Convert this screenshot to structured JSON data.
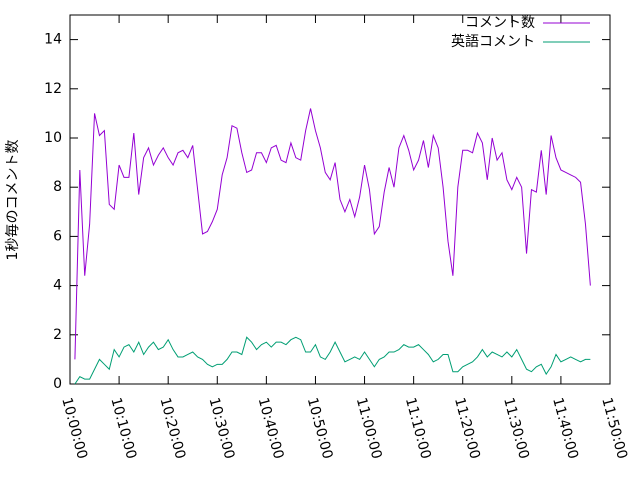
{
  "chart_data": {
    "type": "line",
    "y_label": "1秒毎のコメント数",
    "x": [
      "10:01:00",
      "10:02:00",
      "10:03:00",
      "10:04:00",
      "10:05:00",
      "10:06:00",
      "10:07:00",
      "10:08:00",
      "10:09:00",
      "10:10:00",
      "10:11:00",
      "10:12:00",
      "10:13:00",
      "10:14:00",
      "10:15:00",
      "10:16:00",
      "10:17:00",
      "10:18:00",
      "10:19:00",
      "10:20:00",
      "10:21:00",
      "10:22:00",
      "10:23:00",
      "10:24:00",
      "10:25:00",
      "10:26:00",
      "10:27:00",
      "10:28:00",
      "10:29:00",
      "10:30:00",
      "10:31:00",
      "10:32:00",
      "10:33:00",
      "10:34:00",
      "10:35:00",
      "10:36:00",
      "10:37:00",
      "10:38:00",
      "10:39:00",
      "10:40:00",
      "10:41:00",
      "10:42:00",
      "10:43:00",
      "10:44:00",
      "10:45:00",
      "10:46:00",
      "10:47:00",
      "10:48:00",
      "10:49:00",
      "10:50:00",
      "10:51:00",
      "10:52:00",
      "10:53:00",
      "10:54:00",
      "10:55:00",
      "10:56:00",
      "10:57:00",
      "10:58:00",
      "10:59:00",
      "11:00:00",
      "11:01:00",
      "11:02:00",
      "11:03:00",
      "11:04:00",
      "11:05:00",
      "11:06:00",
      "11:07:00",
      "11:08:00",
      "11:09:00",
      "11:10:00",
      "11:11:00",
      "11:12:00",
      "11:13:00",
      "11:14:00",
      "11:15:00",
      "11:16:00",
      "11:17:00",
      "11:18:00",
      "11:19:00",
      "11:20:00",
      "11:21:00",
      "11:22:00",
      "11:23:00",
      "11:24:00",
      "11:25:00",
      "11:26:00",
      "11:27:00",
      "11:28:00",
      "11:29:00",
      "11:30:00",
      "11:31:00",
      "11:32:00",
      "11:33:00",
      "11:34:00",
      "11:35:00",
      "11:36:00",
      "11:37:00",
      "11:38:00",
      "11:39:00",
      "11:40:00",
      "11:41:00",
      "11:42:00",
      "11:43:00",
      "11:44:00",
      "11:45:00",
      "11:46:00"
    ],
    "series": [
      {
        "name": "コメント数",
        "color": "#9400d3",
        "values": [
          1.0,
          8.7,
          4.4,
          6.5,
          11.0,
          10.1,
          10.3,
          7.3,
          7.1,
          8.9,
          8.4,
          8.4,
          10.2,
          7.7,
          9.2,
          9.6,
          8.9,
          9.3,
          9.6,
          9.2,
          8.9,
          9.4,
          9.5,
          9.2,
          9.7,
          7.9,
          6.1,
          6.2,
          6.6,
          7.1,
          8.5,
          9.2,
          10.5,
          10.4,
          9.4,
          8.6,
          8.7,
          9.4,
          9.4,
          9.0,
          9.6,
          9.7,
          9.1,
          9.0,
          9.8,
          9.2,
          9.1,
          10.3,
          11.2,
          10.3,
          9.6,
          8.6,
          8.3,
          9.0,
          7.5,
          7.0,
          7.5,
          6.8,
          7.6,
          8.9,
          7.9,
          6.1,
          6.4,
          7.8,
          8.8,
          8.0,
          9.6,
          10.1,
          9.5,
          8.7,
          9.1,
          9.9,
          8.8,
          10.1,
          9.6,
          8.0,
          5.8,
          4.4,
          8.0,
          9.5,
          9.5,
          9.4,
          10.2,
          9.8,
          8.3,
          10.0,
          9.1,
          9.4,
          8.3,
          7.9,
          8.4,
          8.0,
          5.3,
          7.9,
          7.8,
          9.5,
          7.7,
          10.1,
          9.2,
          8.7,
          8.6,
          8.5,
          8.4,
          8.2,
          6.5,
          4.0
        ]
      },
      {
        "name": "英語コメント",
        "color": "#009e73",
        "values": [
          0.0,
          0.3,
          0.2,
          0.2,
          0.6,
          1.0,
          0.8,
          0.6,
          1.4,
          1.1,
          1.5,
          1.6,
          1.3,
          1.7,
          1.2,
          1.5,
          1.7,
          1.4,
          1.5,
          1.8,
          1.4,
          1.1,
          1.1,
          1.2,
          1.3,
          1.1,
          1.0,
          0.8,
          0.7,
          0.8,
          0.8,
          1.0,
          1.3,
          1.3,
          1.2,
          1.9,
          1.7,
          1.4,
          1.6,
          1.7,
          1.5,
          1.7,
          1.7,
          1.6,
          1.8,
          1.9,
          1.8,
          1.3,
          1.3,
          1.6,
          1.1,
          1.0,
          1.3,
          1.7,
          1.3,
          0.9,
          1.0,
          1.1,
          1.0,
          1.3,
          1.0,
          0.7,
          1.0,
          1.1,
          1.3,
          1.3,
          1.4,
          1.6,
          1.5,
          1.5,
          1.6,
          1.4,
          1.2,
          0.9,
          1.0,
          1.2,
          1.2,
          0.5,
          0.5,
          0.7,
          0.8,
          0.9,
          1.1,
          1.4,
          1.1,
          1.3,
          1.2,
          1.1,
          1.3,
          1.1,
          1.4,
          1.0,
          0.6,
          0.5,
          0.7,
          0.8,
          0.4,
          0.7,
          1.2,
          0.9,
          1.0,
          1.1,
          1.0,
          0.9,
          1.0,
          1.0
        ]
      }
    ],
    "xlim": [
      "10:00:00",
      "11:50:00"
    ],
    "xticks": [
      "10:00:00",
      "10:10:00",
      "10:20:00",
      "10:30:00",
      "10:40:00",
      "10:50:00",
      "11:00:00",
      "11:10:00",
      "11:20:00",
      "11:30:00",
      "11:40:00",
      "11:50:00"
    ],
    "ylim": [
      0,
      15
    ],
    "yticks": [
      0,
      2,
      4,
      6,
      8,
      10,
      12,
      14
    ],
    "legend": "top-right",
    "grid": false
  }
}
